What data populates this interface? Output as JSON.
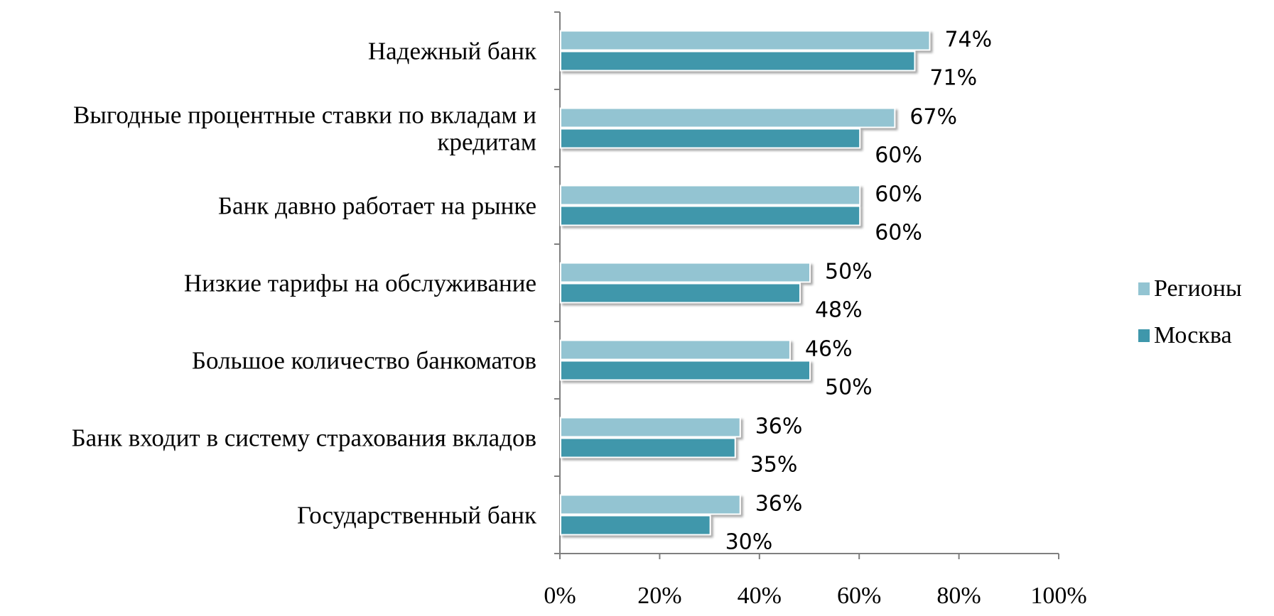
{
  "chart_data": {
    "type": "bar",
    "orientation": "horizontal",
    "categories": [
      [
        "Надежный банк"
      ],
      [
        "Выгодные процентные ставки по вкладам и",
        "кредитам"
      ],
      [
        "Банк давно работает на рынке"
      ],
      [
        "Низкие тарифы на обслуживание"
      ],
      [
        "Большое количество банкоматов"
      ],
      [
        "Банк входит в систему страхования вкладов"
      ],
      [
        "Государственный банк"
      ]
    ],
    "series": [
      {
        "name": "Регионы",
        "color": "#93c4d2",
        "values": [
          74,
          67,
          60,
          50,
          46,
          36,
          36
        ],
        "labels": [
          "74%",
          "67%",
          "60%",
          "50%",
          "46%",
          "36%",
          "36%"
        ]
      },
      {
        "name": "Москва",
        "color": "#3f97ab",
        "values": [
          71,
          60,
          60,
          48,
          50,
          35,
          30
        ],
        "labels": [
          "71%",
          "60%",
          "60%",
          "48%",
          "50%",
          "35%",
          "30%"
        ]
      }
    ],
    "x_ticks": [
      "0%",
      "20%",
      "40%",
      "60%",
      "80%",
      "100%"
    ],
    "xlim": [
      0,
      100
    ],
    "grid": false,
    "legend_position": "right"
  }
}
